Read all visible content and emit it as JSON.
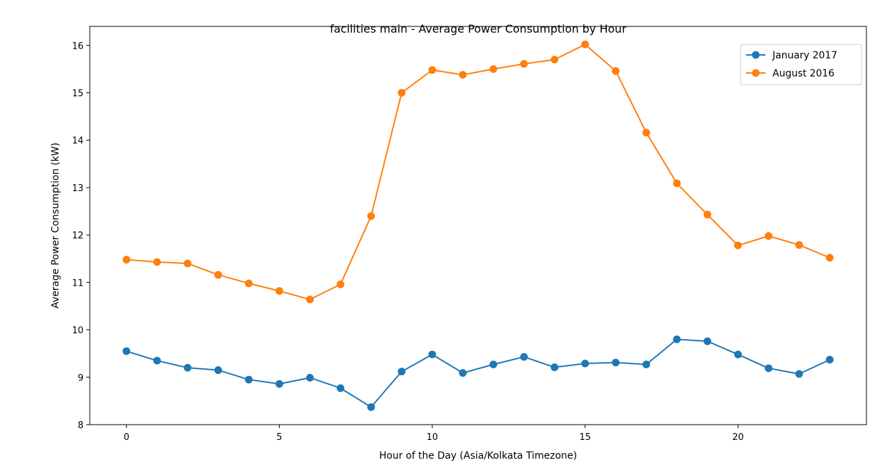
{
  "chart_data": {
    "type": "line",
    "title": "facilities main - Average Power Consumption by Hour",
    "xlabel": "Hour of the Day (Asia/Kolkata Timezone)",
    "ylabel": "Average Power Consumption (kW)",
    "xlim": [
      -1.2,
      24.2
    ],
    "ylim": [
      8,
      16.4
    ],
    "xticks": [
      0,
      5,
      10,
      15,
      20
    ],
    "yticks": [
      8,
      9,
      10,
      11,
      12,
      13,
      14,
      15,
      16
    ],
    "x": [
      0,
      1,
      2,
      3,
      4,
      5,
      6,
      7,
      8,
      9,
      10,
      11,
      12,
      13,
      14,
      15,
      16,
      17,
      18,
      19,
      20,
      21,
      22,
      23
    ],
    "grid": false,
    "legend_position": "upper-right",
    "series": [
      {
        "name": "January 2017",
        "color": "#1f77b4",
        "values": [
          9.55,
          9.35,
          9.2,
          9.15,
          8.95,
          8.86,
          8.99,
          8.77,
          8.37,
          9.12,
          9.48,
          9.09,
          9.27,
          9.43,
          9.21,
          9.29,
          9.31,
          9.27,
          9.8,
          9.76,
          9.48,
          9.19,
          9.07,
          9.37
        ]
      },
      {
        "name": "August 2016",
        "color": "#ff7f0e",
        "values": [
          11.48,
          11.43,
          11.4,
          11.16,
          10.98,
          10.82,
          10.64,
          10.96,
          12.4,
          15.0,
          15.48,
          15.38,
          15.5,
          15.61,
          15.7,
          16.02,
          15.46,
          14.16,
          13.09,
          12.43,
          11.78,
          11.98,
          11.79,
          11.52
        ]
      }
    ]
  }
}
